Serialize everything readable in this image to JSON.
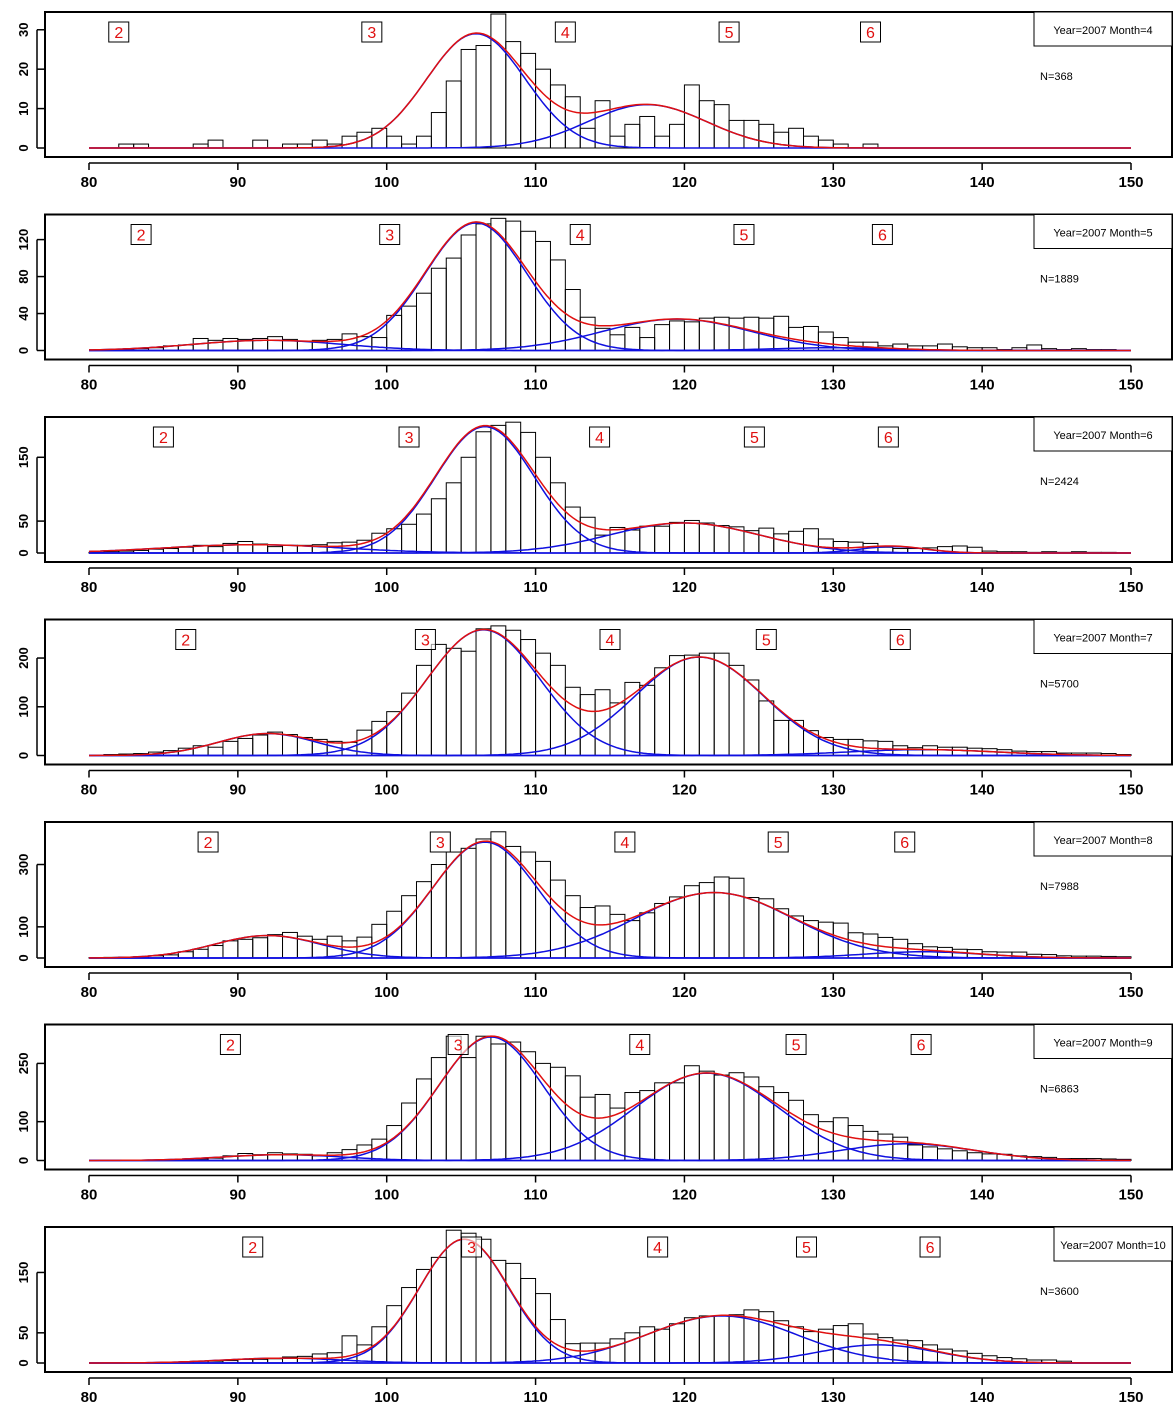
{
  "chart_data": [
    {
      "type": "bar",
      "panel_label": "Year=2007 Month=4",
      "n_label": "N=368",
      "xlim": [
        80,
        150
      ],
      "ylim": [
        0,
        34
      ],
      "xticks": [
        80,
        90,
        100,
        110,
        120,
        130,
        140,
        150
      ],
      "yticks": [
        0,
        10,
        20,
        30
      ],
      "bin_start": 80,
      "bin_width": 1,
      "counts": [
        0,
        0,
        1,
        1,
        0,
        0,
        0,
        1,
        2,
        0,
        0,
        2,
        0,
        1,
        1,
        2,
        1,
        3,
        4,
        5,
        3,
        1,
        3,
        9,
        17,
        25,
        26,
        34,
        27,
        24,
        20,
        16,
        13,
        5,
        12,
        3,
        6,
        8,
        3,
        6,
        16,
        12,
        11,
        7,
        7,
        6,
        4,
        5,
        3,
        2,
        1,
        0,
        1,
        0,
        0,
        0,
        0,
        0,
        0,
        0,
        0,
        0,
        0,
        0,
        0,
        0,
        0,
        0,
        0,
        0
      ],
      "age_groups": [
        {
          "label": "2",
          "x": 82
        },
        {
          "label": "3",
          "x": 99
        },
        {
          "label": "4",
          "x": 112
        },
        {
          "label": "5",
          "x": 123
        },
        {
          "label": "6",
          "x": 132.5
        }
      ],
      "components": [
        {
          "mean": 106,
          "sd": 3.3,
          "height": 29
        },
        {
          "mean": 117.5,
          "sd": 4.0,
          "height": 11
        }
      ]
    },
    {
      "type": "bar",
      "panel_label": "Year=2007 Month=5",
      "n_label": "N=1889",
      "xlim": [
        80,
        150
      ],
      "ylim": [
        0,
        145
      ],
      "xticks": [
        80,
        90,
        100,
        110,
        120,
        130,
        140,
        150
      ],
      "yticks": [
        0,
        40,
        80,
        120
      ],
      "bin_start": 80,
      "bin_width": 1,
      "counts": [
        0,
        1,
        1,
        2,
        3,
        5,
        6,
        13,
        11,
        13,
        12,
        13,
        15,
        12,
        10,
        11,
        12,
        18,
        15,
        14,
        38,
        48,
        62,
        89,
        100,
        125,
        137,
        143,
        140,
        129,
        118,
        98,
        66,
        36,
        24,
        17,
        25,
        14,
        28,
        32,
        31,
        35,
        36,
        35,
        36,
        35,
        37,
        25,
        26,
        20,
        14,
        9,
        9,
        5,
        7,
        5,
        5,
        7,
        4,
        3,
        3,
        1,
        3,
        6,
        2,
        1,
        2,
        1,
        1,
        0
      ],
      "age_groups": [
        {
          "label": "2",
          "x": 83.5
        },
        {
          "label": "3",
          "x": 100.2
        },
        {
          "label": "4",
          "x": 113
        },
        {
          "label": "5",
          "x": 124
        },
        {
          "label": "6",
          "x": 133.3
        }
      ],
      "components": [
        {
          "mean": 92,
          "sd": 5,
          "height": 11
        },
        {
          "mean": 106,
          "sd": 3.4,
          "height": 138
        },
        {
          "mean": 119.5,
          "sd": 5.0,
          "height": 34
        },
        {
          "mean": 130,
          "sd": 4.0,
          "height": 3
        }
      ]
    },
    {
      "type": "bar",
      "panel_label": "Year=2007 Month=6",
      "n_label": "N=2424",
      "xlim": [
        80,
        150
      ],
      "ylim": [
        0,
        210
      ],
      "xticks": [
        80,
        90,
        100,
        110,
        120,
        130,
        140,
        150
      ],
      "yticks": [
        0,
        50,
        150
      ],
      "bin_start": 80,
      "bin_width": 1,
      "counts": [
        1,
        2,
        3,
        4,
        6,
        7,
        9,
        12,
        10,
        15,
        18,
        14,
        10,
        12,
        12,
        13,
        16,
        17,
        20,
        31,
        38,
        45,
        61,
        85,
        110,
        150,
        190,
        200,
        205,
        189,
        150,
        110,
        72,
        56,
        28,
        40,
        36,
        42,
        42,
        48,
        51,
        47,
        43,
        41,
        35,
        39,
        30,
        34,
        38,
        22,
        18,
        17,
        15,
        9,
        7,
        7,
        8,
        10,
        11,
        9,
        3,
        2,
        2,
        1,
        2,
        1,
        2,
        1,
        1,
        0
      ],
      "age_groups": [
        {
          "label": "2",
          "x": 85
        },
        {
          "label": "3",
          "x": 101.5
        },
        {
          "label": "4",
          "x": 114.3
        },
        {
          "label": "5",
          "x": 124.7
        },
        {
          "label": "6",
          "x": 133.7
        }
      ],
      "components": [
        {
          "mean": 91,
          "sd": 6,
          "height": 13
        },
        {
          "mean": 106.6,
          "sd": 3.3,
          "height": 198
        },
        {
          "mean": 120,
          "sd": 5.0,
          "height": 47
        },
        {
          "mean": 134,
          "sd": 2.2,
          "height": 10
        }
      ]
    },
    {
      "type": "bar",
      "panel_label": "Year=2007 Month=7",
      "n_label": "N=5700",
      "xlim": [
        80,
        150
      ],
      "ylim": [
        0,
        275
      ],
      "xticks": [
        80,
        90,
        100,
        110,
        120,
        130,
        140,
        150
      ],
      "yticks": [
        0,
        100,
        200
      ],
      "bin_start": 80,
      "bin_width": 1,
      "counts": [
        0,
        2,
        3,
        4,
        7,
        10,
        15,
        20,
        17,
        29,
        35,
        42,
        48,
        43,
        37,
        33,
        29,
        27,
        52,
        70,
        90,
        128,
        185,
        228,
        220,
        214,
        260,
        266,
        257,
        238,
        210,
        185,
        140,
        125,
        135,
        108,
        150,
        144,
        180,
        205,
        206,
        210,
        210,
        185,
        155,
        112,
        72,
        72,
        51,
        37,
        33,
        33,
        30,
        29,
        20,
        16,
        20,
        17,
        17,
        15,
        14,
        12,
        9,
        8,
        8,
        5,
        5,
        5,
        4,
        2
      ],
      "age_groups": [
        {
          "label": "2",
          "x": 86.5
        },
        {
          "label": "3",
          "x": 102.6
        },
        {
          "label": "4",
          "x": 115
        },
        {
          "label": "5",
          "x": 125.5
        },
        {
          "label": "6",
          "x": 134.5
        }
      ],
      "components": [
        {
          "mean": 92,
          "sd": 3.3,
          "height": 45
        },
        {
          "mean": 106.5,
          "sd": 3.8,
          "height": 258
        },
        {
          "mean": 121,
          "sd": 4.3,
          "height": 202
        },
        {
          "mean": 136,
          "sd": 5.0,
          "height": 12
        }
      ]
    },
    {
      "type": "bar",
      "panel_label": "Year=2007 Month=8",
      "n_label": "N=7988",
      "xlim": [
        80,
        150
      ],
      "ylim": [
        0,
        430
      ],
      "xticks": [
        80,
        90,
        100,
        110,
        120,
        130,
        140,
        150
      ],
      "yticks": [
        0,
        100,
        300
      ],
      "bin_start": 80,
      "bin_width": 1,
      "counts": [
        1,
        2,
        3,
        4,
        7,
        10,
        20,
        28,
        40,
        55,
        60,
        65,
        75,
        82,
        70,
        60,
        70,
        55,
        67,
        108,
        150,
        200,
        245,
        300,
        340,
        352,
        382,
        405,
        358,
        340,
        310,
        250,
        200,
        162,
        167,
        140,
        120,
        145,
        175,
        196,
        232,
        242,
        260,
        256,
        194,
        190,
        158,
        135,
        120,
        115,
        112,
        81,
        77,
        66,
        60,
        46,
        36,
        34,
        28,
        27,
        20,
        19,
        19,
        12,
        11,
        7,
        6,
        6,
        5,
        4
      ],
      "age_groups": [
        {
          "label": "2",
          "x": 88
        },
        {
          "label": "3",
          "x": 103.6
        },
        {
          "label": "4",
          "x": 116
        },
        {
          "label": "5",
          "x": 126.3
        },
        {
          "label": "6",
          "x": 134.8
        }
      ],
      "components": [
        {
          "mean": 92,
          "sd": 3.6,
          "height": 72
        },
        {
          "mean": 106.6,
          "sd": 3.5,
          "height": 372
        },
        {
          "mean": 122,
          "sd": 5.3,
          "height": 210
        },
        {
          "mean": 136,
          "sd": 4.0,
          "height": 20
        }
      ]
    },
    {
      "type": "bar",
      "panel_label": "Year=2007 Month=9",
      "n_label": "N=6863",
      "xlim": [
        80,
        150
      ],
      "ylim": [
        0,
        345
      ],
      "xticks": [
        80,
        90,
        100,
        110,
        120,
        130,
        140,
        150
      ],
      "yticks": [
        0,
        100,
        250
      ],
      "bin_start": 80,
      "bin_width": 1,
      "counts": [
        0,
        0,
        0,
        0,
        0,
        0,
        2,
        4,
        6,
        12,
        18,
        15,
        20,
        17,
        16,
        12,
        20,
        28,
        40,
        55,
        90,
        148,
        210,
        265,
        320,
        265,
        320,
        300,
        305,
        280,
        250,
        240,
        218,
        163,
        170,
        135,
        175,
        180,
        200,
        200,
        244,
        230,
        220,
        226,
        215,
        190,
        175,
        155,
        118,
        100,
        110,
        90,
        75,
        68,
        60,
        40,
        35,
        30,
        25,
        20,
        17,
        16,
        12,
        10,
        8,
        5,
        5,
        5,
        4,
        3
      ],
      "age_groups": [
        {
          "label": "2",
          "x": 89.5
        },
        {
          "label": "3",
          "x": 104.8
        },
        {
          "label": "4",
          "x": 117
        },
        {
          "label": "5",
          "x": 127.5
        },
        {
          "label": "6",
          "x": 135.9
        }
      ],
      "components": [
        {
          "mean": 93,
          "sd": 4,
          "height": 15
        },
        {
          "mean": 107,
          "sd": 3.5,
          "height": 318
        },
        {
          "mean": 121.5,
          "sd": 4.8,
          "height": 225
        },
        {
          "mean": 135,
          "sd": 4.5,
          "height": 43
        }
      ]
    },
    {
      "type": "bar",
      "panel_label": "Year=2007 Month=10",
      "n_label": "N=3600",
      "xlim": [
        80,
        150
      ],
      "ylim": [
        0,
        222
      ],
      "xticks": [
        80,
        90,
        100,
        110,
        120,
        130,
        140,
        150
      ],
      "yticks": [
        0,
        50,
        150
      ],
      "bin_start": 80,
      "bin_width": 1,
      "counts": [
        0,
        0,
        0,
        0,
        0,
        0,
        0,
        3,
        3,
        4,
        6,
        6,
        7,
        10,
        11,
        15,
        17,
        45,
        30,
        60,
        95,
        125,
        155,
        175,
        220,
        215,
        205,
        170,
        165,
        140,
        115,
        72,
        32,
        33,
        33,
        40,
        50,
        60,
        56,
        65,
        75,
        78,
        78,
        80,
        88,
        85,
        70,
        60,
        52,
        56,
        62,
        65,
        48,
        42,
        38,
        37,
        30,
        23,
        20,
        16,
        12,
        9,
        7,
        5,
        5,
        3,
        0,
        0,
        0,
        0
      ],
      "age_groups": [
        {
          "label": "2",
          "x": 91
        },
        {
          "label": "3",
          "x": 105.7
        },
        {
          "label": "4",
          "x": 118.2
        },
        {
          "label": "5",
          "x": 128.2
        },
        {
          "label": "6",
          "x": 136.5
        }
      ],
      "components": [
        {
          "mean": 93,
          "sd": 4,
          "height": 8
        },
        {
          "mean": 105.2,
          "sd": 3.0,
          "height": 205
        },
        {
          "mean": 122.5,
          "sd": 5.0,
          "height": 78
        },
        {
          "mean": 133,
          "sd": 4.0,
          "height": 30
        }
      ]
    }
  ]
}
